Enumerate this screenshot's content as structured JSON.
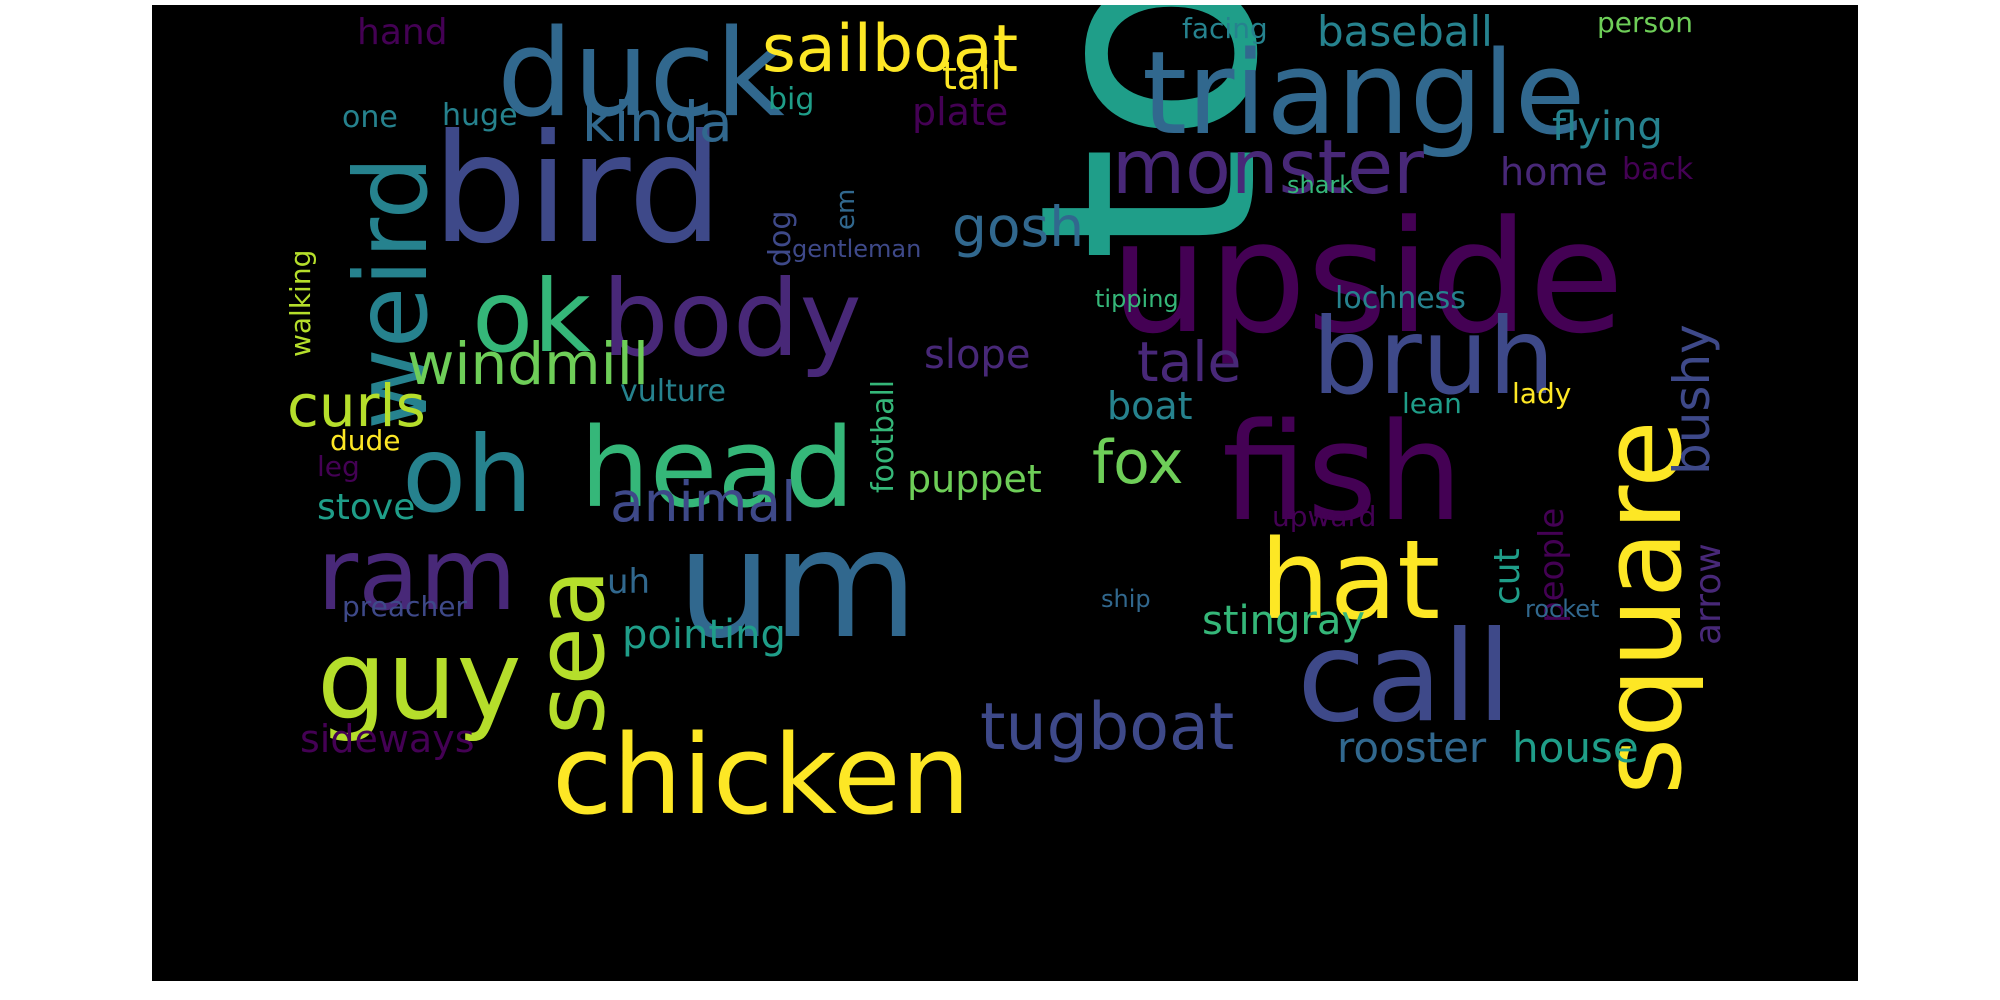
{
  "wordcloud": {
    "palette": {
      "dark_purple": "#440154",
      "indigo": "#482878",
      "blue_violet": "#3e4989",
      "steel_blue": "#31688e",
      "teal_blue": "#26828e",
      "teal": "#1f9e89",
      "green_teal": "#35b779",
      "green": "#6ece58",
      "lime": "#b5de2b",
      "yellow": "#fde725"
    },
    "words": [
      {
        "text": "to",
        "color": "#1f9e89"
      },
      {
        "text": "upside",
        "color": "#440154"
      },
      {
        "text": "bird",
        "color": "#3e4989"
      },
      {
        "text": "triangle",
        "color": "#31688e"
      },
      {
        "text": "duck",
        "color": "#31688e"
      },
      {
        "text": "fish",
        "color": "#440154"
      },
      {
        "text": "um",
        "color": "#31688e"
      },
      {
        "text": "call",
        "color": "#3e4989"
      },
      {
        "text": "chicken",
        "color": "#fde725"
      },
      {
        "text": "head",
        "color": "#35b779"
      },
      {
        "text": "body",
        "color": "#482878"
      },
      {
        "text": "square",
        "color": "#fde725"
      },
      {
        "text": "weird",
        "color": "#26828e"
      },
      {
        "text": "ok",
        "color": "#35b779"
      },
      {
        "text": "bruh",
        "color": "#3e4989"
      },
      {
        "text": "hat",
        "color": "#fde725"
      },
      {
        "text": "guy",
        "color": "#b5de2b"
      },
      {
        "text": "oh",
        "color": "#26828e"
      },
      {
        "text": "ram",
        "color": "#482878"
      },
      {
        "text": "sea",
        "color": "#b5de2b"
      },
      {
        "text": "monster",
        "color": "#482878"
      },
      {
        "text": "sailboat",
        "color": "#fde725"
      },
      {
        "text": "tugboat",
        "color": "#3e4989"
      },
      {
        "text": "windmill",
        "color": "#6ece58"
      },
      {
        "text": "animal",
        "color": "#3e4989"
      },
      {
        "text": "kinda",
        "color": "#31688e"
      },
      {
        "text": "tale",
        "color": "#482878"
      },
      {
        "text": "curls",
        "color": "#b5de2b"
      },
      {
        "text": "gosh",
        "color": "#31688e"
      },
      {
        "text": "fox",
        "color": "#6ece58"
      },
      {
        "text": "stingray",
        "color": "#35b779"
      },
      {
        "text": "bushy",
        "color": "#3e4989"
      },
      {
        "text": "rooster",
        "color": "#31688e"
      },
      {
        "text": "house",
        "color": "#1f9e89"
      },
      {
        "text": "baseball",
        "color": "#26828e"
      },
      {
        "text": "puppet",
        "color": "#6ece58"
      },
      {
        "text": "pointing",
        "color": "#1f9e89"
      },
      {
        "text": "flying",
        "color": "#26828e"
      },
      {
        "text": "slope",
        "color": "#482878"
      },
      {
        "text": "sideways",
        "color": "#440154"
      },
      {
        "text": "home",
        "color": "#482878"
      },
      {
        "text": "arrow",
        "color": "#482878"
      },
      {
        "text": "plate",
        "color": "#440154"
      },
      {
        "text": "tail",
        "color": "#fde725"
      },
      {
        "text": "hand",
        "color": "#440154"
      },
      {
        "text": "stove",
        "color": "#1f9e89"
      },
      {
        "text": "lochness",
        "color": "#26828e"
      },
      {
        "text": "boat",
        "color": "#26828e"
      },
      {
        "text": "cut",
        "color": "#1f9e89"
      },
      {
        "text": "people",
        "color": "#440154"
      },
      {
        "text": "uh",
        "color": "#31688e"
      },
      {
        "text": "football",
        "color": "#35b779"
      },
      {
        "text": "vulture",
        "color": "#26828e"
      },
      {
        "text": "upward",
        "color": "#440154"
      },
      {
        "text": "preacher",
        "color": "#3e4989"
      },
      {
        "text": "facing",
        "color": "#26828e"
      },
      {
        "text": "person",
        "color": "#6ece58"
      },
      {
        "text": "walking",
        "color": "#b5de2b"
      },
      {
        "text": "big",
        "color": "#1f9e89"
      },
      {
        "text": "huge",
        "color": "#26828e"
      },
      {
        "text": "one",
        "color": "#26828e"
      },
      {
        "text": "dog",
        "color": "#3e4989"
      },
      {
        "text": "em",
        "color": "#31688e"
      },
      {
        "text": "back",
        "color": "#440154"
      },
      {
        "text": "shark",
        "color": "#35b779"
      },
      {
        "text": "gentleman",
        "color": "#3e4989"
      },
      {
        "text": "tipping",
        "color": "#35b779"
      },
      {
        "text": "lady",
        "color": "#fde725"
      },
      {
        "text": "lean",
        "color": "#1f9e89"
      },
      {
        "text": "dude",
        "color": "#fde725"
      },
      {
        "text": "leg",
        "color": "#440154"
      },
      {
        "text": "ship",
        "color": "#31688e"
      },
      {
        "text": "rocket",
        "color": "#31688e"
      }
    ]
  }
}
